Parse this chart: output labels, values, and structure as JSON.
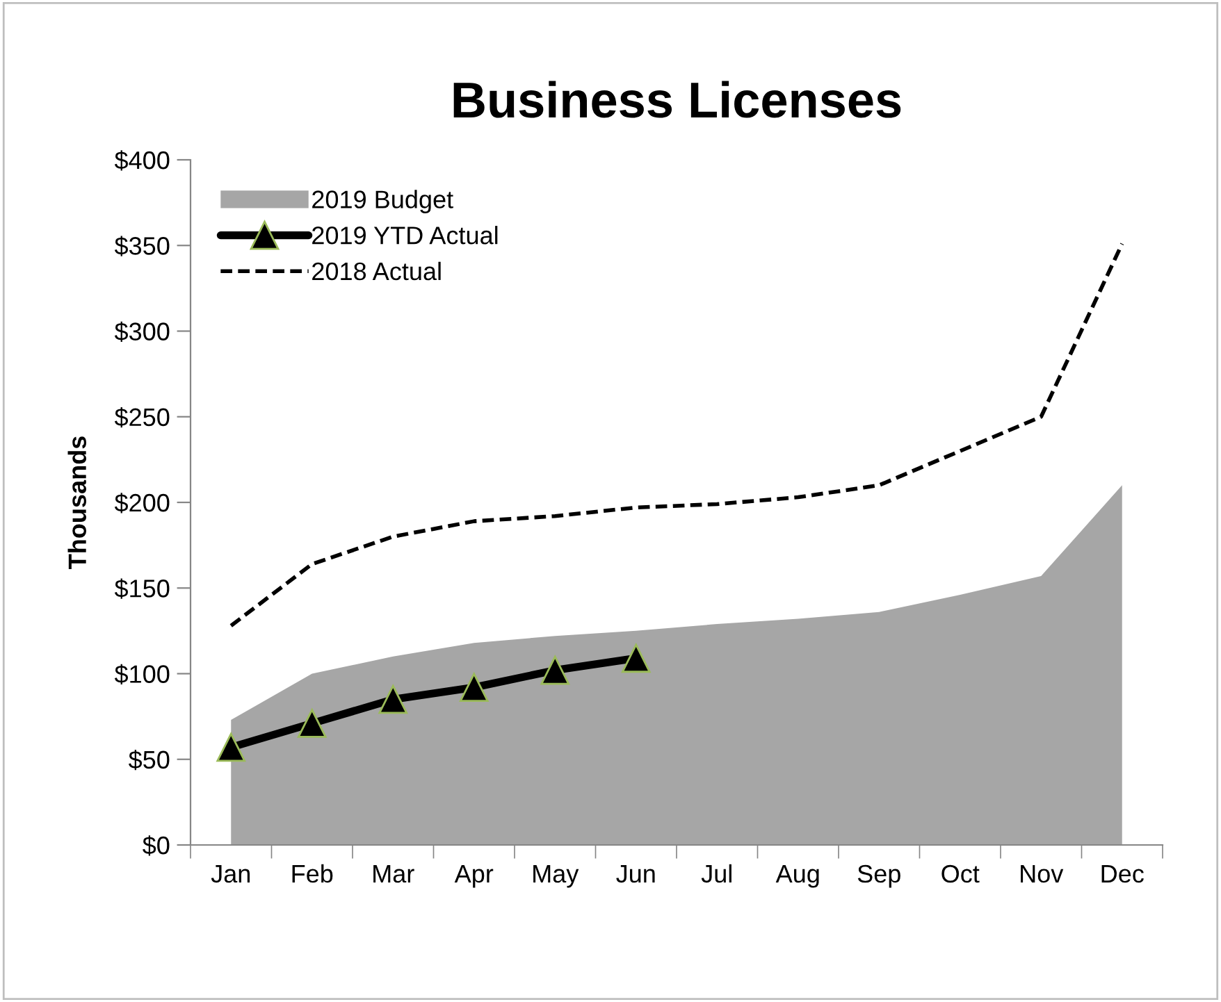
{
  "chart_data": {
    "type": "line",
    "title": "Business Licenses",
    "ylabel": "Thousands",
    "categories": [
      "Jan",
      "Feb",
      "Mar",
      "Apr",
      "May",
      "Jun",
      "Jul",
      "Aug",
      "Sep",
      "Oct",
      "Nov",
      "Dec"
    ],
    "series": [
      {
        "name": "2019 Budget",
        "type": "area",
        "color": "#a6a6a6",
        "values": [
          73,
          100,
          110,
          118,
          122,
          125,
          129,
          132,
          136,
          146,
          157,
          210
        ]
      },
      {
        "name": "2019 YTD Actual",
        "color": "#000000",
        "marker": "triangle",
        "line_style": "solid",
        "values": [
          57,
          71,
          85,
          92,
          102,
          109,
          null,
          null,
          null,
          null,
          null,
          null
        ]
      },
      {
        "name": "2018 Actual",
        "color": "#000000",
        "marker": "none",
        "line_style": "dashed",
        "values": [
          128,
          164,
          180,
          189,
          192,
          197,
          199,
          203,
          210,
          230,
          250,
          351
        ]
      }
    ],
    "ylim": [
      0,
      400
    ],
    "yticks": [
      {
        "value": 0,
        "label": "$0"
      },
      {
        "value": 50,
        "label": "$50"
      },
      {
        "value": 100,
        "label": "$100"
      },
      {
        "value": 150,
        "label": "$150"
      },
      {
        "value": 200,
        "label": "$200"
      },
      {
        "value": 250,
        "label": "$250"
      },
      {
        "value": 300,
        "label": "$300"
      },
      {
        "value": 350,
        "label": "$350"
      },
      {
        "value": 400,
        "label": "$400"
      }
    ],
    "grid": false,
    "legend": "top left"
  }
}
